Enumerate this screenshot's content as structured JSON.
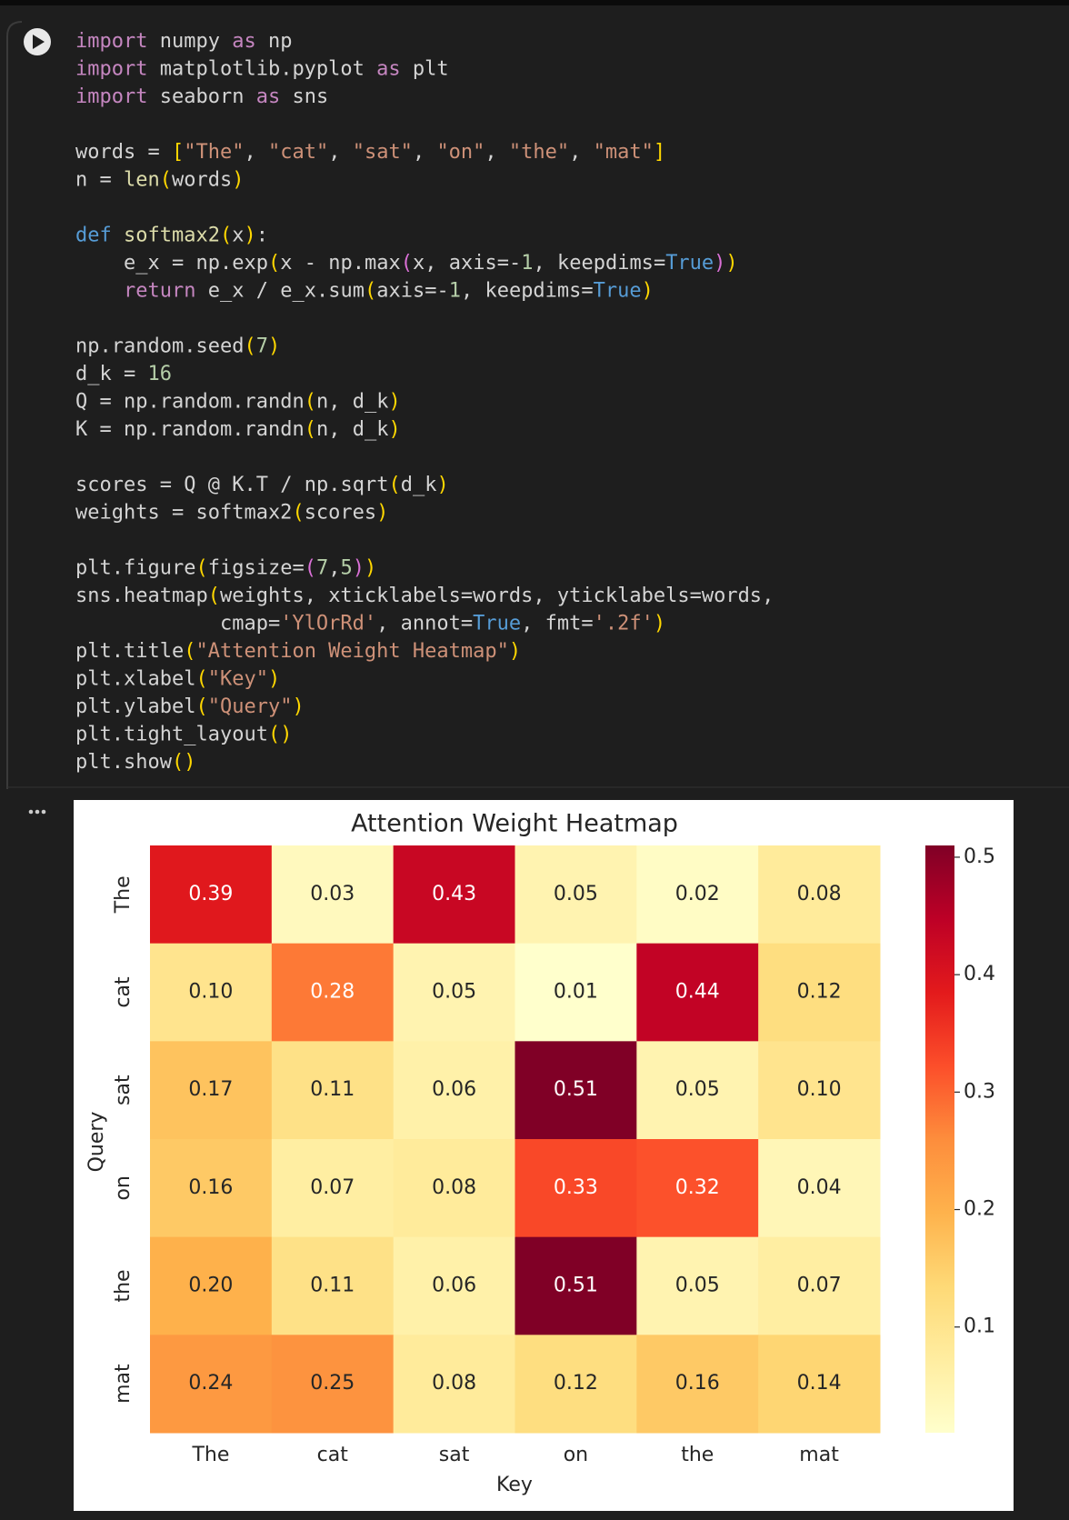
{
  "code_cell": {
    "blocks": [
      [
        "import numpy as np",
        "import matplotlib.pyplot as plt",
        "import seaborn as sns"
      ],
      [
        "words = [\"The\", \"cat\", \"sat\", \"on\", \"the\", \"mat\"]",
        "n = len(words)"
      ],
      [
        "def softmax2(x):",
        "    e_x = np.exp(x - np.max(x, axis=-1, keepdims=True))",
        "    return e_x / e_x.sum(axis=-1, keepdims=True)"
      ],
      [
        "np.random.seed(7)",
        "d_k = 16",
        "Q = np.random.randn(n, d_k)",
        "K = np.random.randn(n, d_k)"
      ],
      [
        "scores = Q @ K.T / np.sqrt(d_k)",
        "weights = softmax2(scores)"
      ],
      [
        "plt.figure(figsize=(7,5))",
        "sns.heatmap(weights, xticklabels=words, yticklabels=words,",
        "            cmap='YlOrRd', annot=True, fmt='.2f')",
        "plt.title(\"Attention Weight Heatmap\")",
        "plt.xlabel(\"Key\")",
        "plt.ylabel(\"Query\")",
        "plt.tight_layout()",
        "plt.show()"
      ]
    ]
  },
  "chart_data": {
    "type": "heatmap",
    "title": "Attention Weight Heatmap",
    "x_label": "Key",
    "y_label": "Query",
    "categories": [
      "The",
      "cat",
      "sat",
      "on",
      "the",
      "mat"
    ],
    "y_categories": [
      "The",
      "cat",
      "sat",
      "on",
      "the",
      "mat"
    ],
    "values": [
      [
        0.39,
        0.03,
        0.43,
        0.05,
        0.02,
        0.08
      ],
      [
        0.1,
        0.28,
        0.05,
        0.01,
        0.44,
        0.12
      ],
      [
        0.17,
        0.11,
        0.06,
        0.51,
        0.05,
        0.1
      ],
      [
        0.16,
        0.07,
        0.08,
        0.33,
        0.32,
        0.04
      ],
      [
        0.2,
        0.11,
        0.06,
        0.51,
        0.05,
        0.07
      ],
      [
        0.24,
        0.25,
        0.08,
        0.12,
        0.16,
        0.14
      ]
    ],
    "value_labels": [
      [
        "0.39",
        "0.03",
        "0.43",
        "0.05",
        "0.02",
        "0.08"
      ],
      [
        "0.10",
        "0.28",
        "0.05",
        "0.01",
        "0.44",
        "0.12"
      ],
      [
        "0.17",
        "0.11",
        "0.06",
        "0.51",
        "0.05",
        "0.10"
      ],
      [
        "0.16",
        "0.07",
        "0.08",
        "0.33",
        "0.32",
        "0.04"
      ],
      [
        "0.20",
        "0.11",
        "0.06",
        "0.51",
        "0.05",
        "0.07"
      ],
      [
        "0.24",
        "0.25",
        "0.08",
        "0.12",
        "0.16",
        "0.14"
      ]
    ],
    "clim": [
      0.01,
      0.51
    ],
    "colorbar_ticks": [
      0.1,
      0.2,
      0.3,
      0.4,
      0.5
    ],
    "colormap": "YlOrRd",
    "colors": [
      "#ffffcc",
      "#ffeda0",
      "#fed976",
      "#feb24c",
      "#fd8d3c",
      "#fc4e2a",
      "#e31a1c",
      "#bd0026",
      "#800026"
    ]
  }
}
